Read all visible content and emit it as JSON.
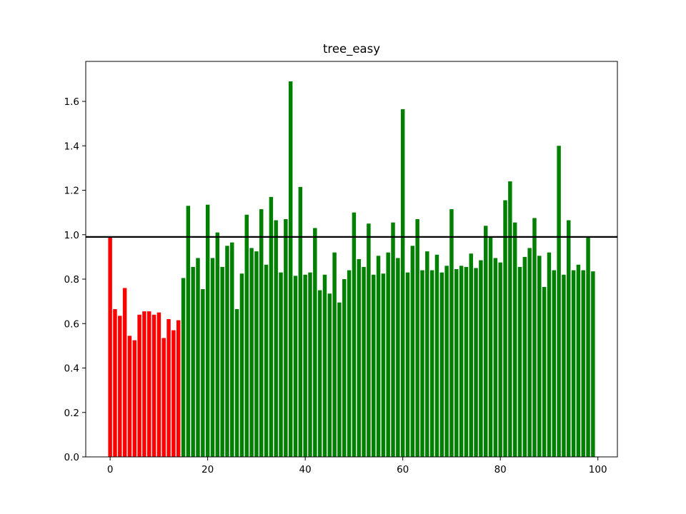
{
  "chart_data": {
    "type": "bar",
    "title": "tree_easy",
    "xlabel": "",
    "ylabel": "",
    "xlim": [
      -5,
      104
    ],
    "ylim": [
      0,
      1.78
    ],
    "x_ticks": [
      0,
      20,
      40,
      60,
      80,
      100
    ],
    "y_ticks": [
      0.0,
      0.2,
      0.4,
      0.6,
      0.8,
      1.0,
      1.2,
      1.4,
      1.6
    ],
    "y_tick_format_decimals": 1,
    "grid": false,
    "legend": "none",
    "reference_line": {
      "y": 0.99,
      "color": "#000000"
    },
    "colors": {
      "below_index_15": "#ff0000",
      "from_index_15": "#008000"
    },
    "red_until_index": 14,
    "x": [
      0,
      1,
      2,
      3,
      4,
      5,
      6,
      7,
      8,
      9,
      10,
      11,
      12,
      13,
      14,
      15,
      16,
      17,
      18,
      19,
      20,
      21,
      22,
      23,
      24,
      25,
      26,
      27,
      28,
      29,
      30,
      31,
      32,
      33,
      34,
      35,
      36,
      37,
      38,
      39,
      40,
      41,
      42,
      43,
      44,
      45,
      46,
      47,
      48,
      49,
      50,
      51,
      52,
      53,
      54,
      55,
      56,
      57,
      58,
      59,
      60,
      61,
      62,
      63,
      64,
      65,
      66,
      67,
      68,
      69,
      70,
      71,
      72,
      73,
      74,
      75,
      76,
      77,
      78,
      79,
      80,
      81,
      82,
      83,
      84,
      85,
      86,
      87,
      88,
      89,
      90,
      91,
      92,
      93,
      94,
      95,
      96,
      97,
      98,
      99
    ],
    "values": [
      0.99,
      0.665,
      0.635,
      0.76,
      0.545,
      0.525,
      0.64,
      0.655,
      0.655,
      0.64,
      0.65,
      0.535,
      0.62,
      0.57,
      0.615,
      0.805,
      1.13,
      0.855,
      0.895,
      0.755,
      1.135,
      0.895,
      1.01,
      0.855,
      0.95,
      0.965,
      0.665,
      0.825,
      1.09,
      0.94,
      0.925,
      1.115,
      0.865,
      1.17,
      1.065,
      0.83,
      1.07,
      1.69,
      0.815,
      1.215,
      0.82,
      0.83,
      1.03,
      0.75,
      0.82,
      0.735,
      0.92,
      0.695,
      0.8,
      0.84,
      1.1,
      0.89,
      0.855,
      1.05,
      0.82,
      0.905,
      0.825,
      0.92,
      1.055,
      0.895,
      1.565,
      0.83,
      0.95,
      1.07,
      0.84,
      0.925,
      0.84,
      0.91,
      0.83,
      0.86,
      1.115,
      0.845,
      0.86,
      0.855,
      0.915,
      0.85,
      0.885,
      1.04,
      0.99,
      0.895,
      0.875,
      1.155,
      1.24,
      1.055,
      0.855,
      0.9,
      0.94,
      1.075,
      0.905,
      0.765,
      0.92,
      0.84,
      1.4,
      0.82,
      1.065,
      0.84,
      0.865,
      0.84,
      0.99,
      0.835
    ]
  }
}
